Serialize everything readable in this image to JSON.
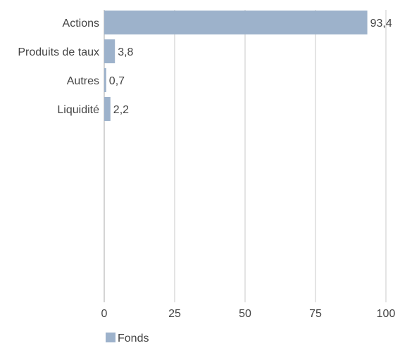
{
  "chart_data": {
    "type": "bar",
    "orientation": "horizontal",
    "categories": [
      "Actions",
      "Produits de taux",
      "Autres",
      "Liquidité"
    ],
    "series": [
      {
        "name": "Fonds",
        "values": [
          93.4,
          3.8,
          0.7,
          2.2
        ],
        "value_labels": [
          "93,4",
          "3,8",
          "0,7",
          "2,2"
        ]
      }
    ],
    "xlim": [
      0,
      100
    ],
    "ticks": [
      0,
      25,
      50,
      75,
      100
    ],
    "tick_labels": [
      "0",
      "25",
      "50",
      "75",
      "100"
    ],
    "grid": "vertical",
    "legend_position": "bottom-left",
    "colors": {
      "bar": "#9db2cb",
      "gridline": "#c8c8c8",
      "text": "#444444"
    }
  }
}
